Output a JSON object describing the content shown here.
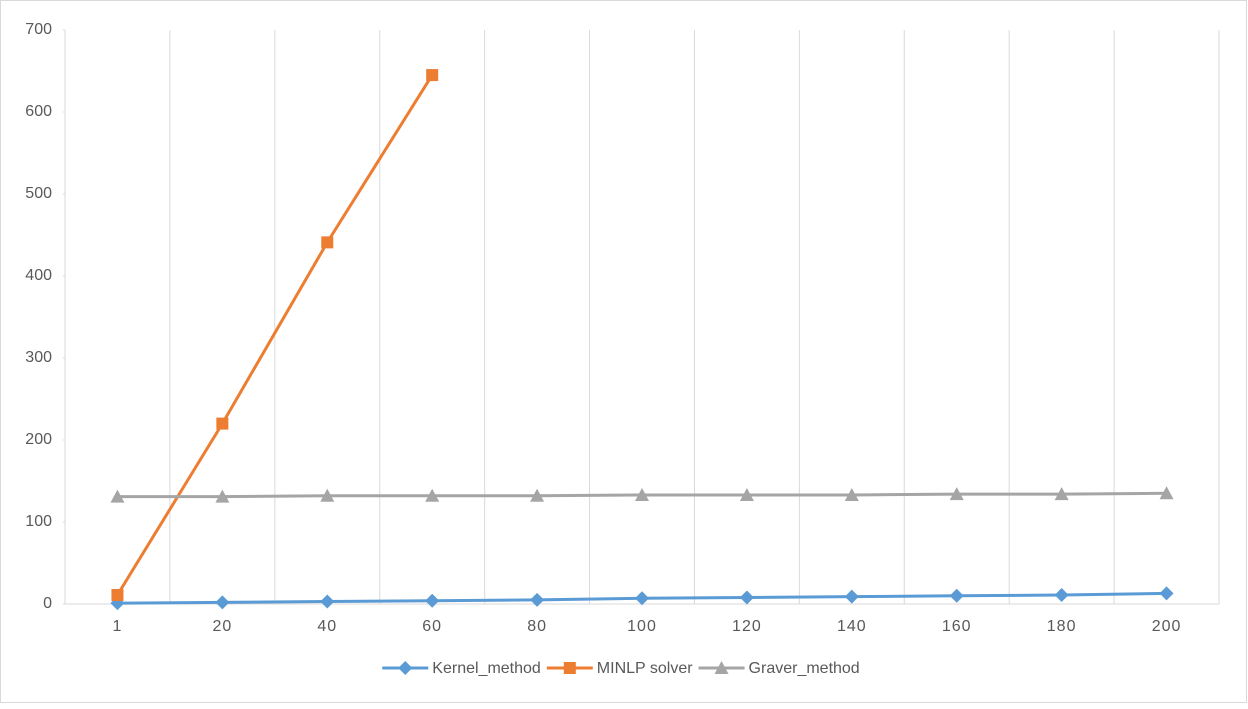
{
  "chart_data": {
    "type": "line",
    "categories": [
      "1",
      "20",
      "40",
      "60",
      "80",
      "100",
      "120",
      "140",
      "160",
      "180",
      "200"
    ],
    "series": [
      {
        "name": "Kernel_method",
        "color": "#5b9bd5",
        "marker": "diamond",
        "values": [
          1,
          2,
          3,
          4,
          5,
          7,
          8,
          9,
          10,
          11,
          13
        ]
      },
      {
        "name": "MINLP solver",
        "color": "#ed7d31",
        "marker": "square",
        "values": [
          11,
          220,
          441,
          645,
          null,
          null,
          null,
          null,
          null,
          null,
          null
        ]
      },
      {
        "name": "Graver_method",
        "color": "#a5a5a5",
        "marker": "triangle",
        "values": [
          131,
          131,
          132,
          132,
          132,
          133,
          133,
          133,
          134,
          134,
          135
        ]
      }
    ],
    "ylim": [
      0,
      700
    ],
    "yticks": [
      0,
      100,
      200,
      300,
      400,
      500,
      600,
      700
    ],
    "legend": "bottom"
  }
}
